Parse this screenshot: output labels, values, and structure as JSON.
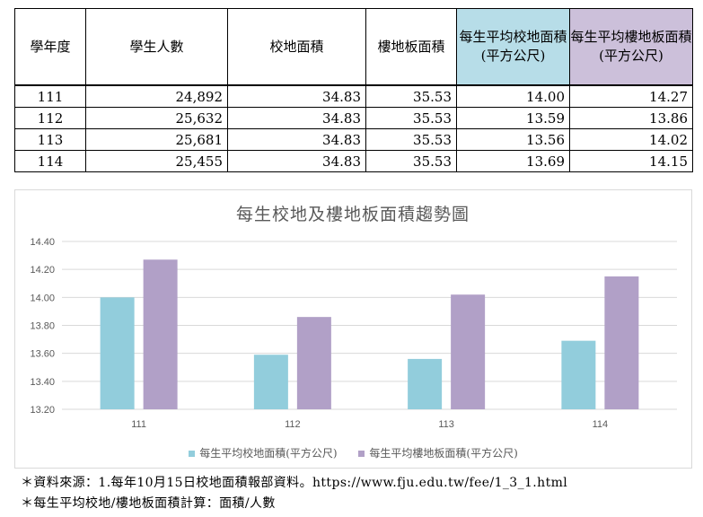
{
  "table": {
    "headers": [
      "學年度",
      "學生人數",
      "校地面積",
      "樓地板面積",
      "每生平均校地面積(平方公尺)",
      "每生平均樓地板面積(平方公尺)"
    ],
    "rows": [
      {
        "year": "111",
        "students": "24,892",
        "campus_area": "34.83",
        "floor_area": "35.53",
        "campus_per_student": "14.00",
        "floor_per_student": "14.27"
      },
      {
        "year": "112",
        "students": "25,632",
        "campus_area": "34.83",
        "floor_area": "35.53",
        "campus_per_student": "13.59",
        "floor_per_student": "13.86"
      },
      {
        "year": "113",
        "students": "25,681",
        "campus_area": "34.83",
        "floor_area": "35.53",
        "campus_per_student": "13.56",
        "floor_per_student": "14.02"
      },
      {
        "year": "114",
        "students": "25,455",
        "campus_area": "34.83",
        "floor_area": "35.53",
        "campus_per_student": "13.69",
        "floor_per_student": "14.15"
      }
    ]
  },
  "colors": {
    "campus": "#92cddc",
    "floor": "#b1a0c7",
    "header_campus_bg": "#b7dde8",
    "header_floor_bg": "#ccc0da",
    "grid": "#d9d9d9",
    "axis_text": "#595959"
  },
  "chart_data": {
    "type": "bar",
    "title": "每生校地及樓地板面積趨勢圖",
    "categories": [
      "111",
      "112",
      "113",
      "114"
    ],
    "series": [
      {
        "name": "每生平均校地面積(平方公尺)",
        "values": [
          14.0,
          13.59,
          13.56,
          13.69
        ]
      },
      {
        "name": "每生平均樓地板面積(平方公尺)",
        "values": [
          14.27,
          13.86,
          14.02,
          14.15
        ]
      }
    ],
    "ylim": [
      13.2,
      14.4
    ],
    "yticks": [
      "13.20",
      "13.40",
      "13.60",
      "13.80",
      "14.00",
      "14.20",
      "14.40"
    ],
    "xlabel": "",
    "ylabel": "",
    "grid": true,
    "legend": "bottom"
  },
  "notes": {
    "source": "＊資料來源：1.每年10月15日校地面積報部資料。https://www.fju.edu.tw/fee/1_3_1.html",
    "formula": "＊每生平均校地/樓地板面積計算：面積/人數"
  }
}
